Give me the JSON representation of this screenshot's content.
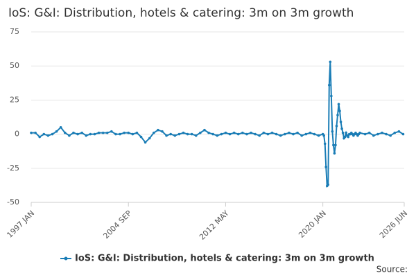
{
  "chart_data": {
    "type": "line",
    "title": "IoS: G&I: Distribution, hotels & catering: 3m on 3m growth",
    "source": "Source:",
    "x": [
      "1997 JAN",
      "1997 MAY",
      "1997 SEP",
      "1998 JAN",
      "1998 MAY",
      "1998 SEP",
      "1999 JAN",
      "1999 MAY",
      "1999 SEP",
      "2000 JAN",
      "2000 MAY",
      "2000 SEP",
      "2001 JAN",
      "2001 MAY",
      "2001 SEP",
      "2002 JAN",
      "2002 MAY",
      "2002 SEP",
      "2003 JAN",
      "2003 MAY",
      "2003 SEP",
      "2004 JAN",
      "2004 MAY",
      "2004 SEP",
      "2005 JAN",
      "2005 MAY",
      "2005 SEP",
      "2006 JAN",
      "2006 MAY",
      "2006 SEP",
      "2007 JAN",
      "2007 MAY",
      "2007 SEP",
      "2008 JAN",
      "2008 MAY",
      "2008 SEP",
      "2009 JAN",
      "2009 MAY",
      "2009 SEP",
      "2010 JAN",
      "2010 MAY",
      "2010 SEP",
      "2011 JAN",
      "2011 MAY",
      "2011 SEP",
      "2012 JAN",
      "2012 MAY",
      "2012 SEP",
      "2013 JAN",
      "2013 MAY",
      "2013 SEP",
      "2014 JAN",
      "2014 MAY",
      "2014 SEP",
      "2015 JAN",
      "2015 MAY",
      "2015 SEP",
      "2016 JAN",
      "2016 MAY",
      "2016 SEP",
      "2017 JAN",
      "2017 MAY",
      "2017 SEP",
      "2018 JAN",
      "2018 MAY",
      "2018 SEP",
      "2019 JAN",
      "2019 MAY",
      "2019 SEP",
      "2020 JAN",
      "2020 FEB",
      "2020 MAR",
      "2020 APR",
      "2020 MAY",
      "2020 JUN",
      "2020 JUL",
      "2020 AUG",
      "2020 SEP",
      "2020 OCT",
      "2020 NOV",
      "2020 DEC",
      "2021 JAN",
      "2021 FEB",
      "2021 MAR",
      "2021 APR",
      "2021 MAY",
      "2021 JUN",
      "2021 JUL",
      "2021 AUG",
      "2021 SEP",
      "2021 OCT",
      "2021 NOV",
      "2021 DEC",
      "2022 JAN",
      "2022 FEB",
      "2022 MAR",
      "2022 APR",
      "2022 MAY",
      "2022 JUN",
      "2022 JUL",
      "2022 AUG",
      "2022 SEP",
      "2022 OCT",
      "2022 NOV",
      "2022 DEC",
      "2023 MAY",
      "2023 SEP",
      "2024 JAN",
      "2024 MAY",
      "2024 SEP",
      "2025 JAN",
      "2025 MAY",
      "2025 SEP",
      "2026 JAN",
      "2026 MAY"
    ],
    "series": [
      {
        "name": "IoS: G&I: Distribution, hotels & catering: 3m on 3m growth",
        "color": "#1a7db6",
        "values": [
          1,
          1,
          -2,
          0,
          -1,
          0,
          2,
          5,
          1,
          -1,
          1,
          0,
          1,
          -1,
          0,
          0,
          1,
          1,
          1,
          2,
          0,
          0,
          1,
          1,
          0,
          1,
          -2,
          -6,
          -3,
          1,
          3,
          2,
          -1,
          0,
          -1,
          0,
          1,
          0,
          0,
          -1,
          1,
          3,
          1,
          0,
          -1,
          0,
          1,
          0,
          1,
          0,
          1,
          0,
          1,
          0,
          -1,
          1,
          0,
          1,
          0,
          -1,
          0,
          1,
          0,
          1,
          -1,
          0,
          1,
          0,
          -1,
          0,
          -1,
          -7,
          -24,
          -38,
          -37,
          36,
          53,
          28,
          2,
          -8,
          -14,
          -8,
          6,
          14,
          22,
          17,
          9,
          4,
          1,
          -3,
          -2,
          1,
          -1,
          -2,
          0,
          0,
          1,
          0,
          -1,
          0,
          1,
          0,
          -1,
          0,
          1,
          0,
          1,
          -1,
          0,
          1,
          0,
          -1,
          1,
          2,
          0
        ]
      }
    ],
    "xlim": [
      "1997 JAN",
      "2026 JUN"
    ],
    "xticks": [
      "1997 JAN",
      "2004 SEP",
      "2012 MAY",
      "2020 JAN",
      "2026 JUN"
    ],
    "ylim": [
      -50,
      75
    ],
    "yticks": [
      -50,
      -25,
      0,
      25,
      50,
      75
    ],
    "grid": true
  }
}
